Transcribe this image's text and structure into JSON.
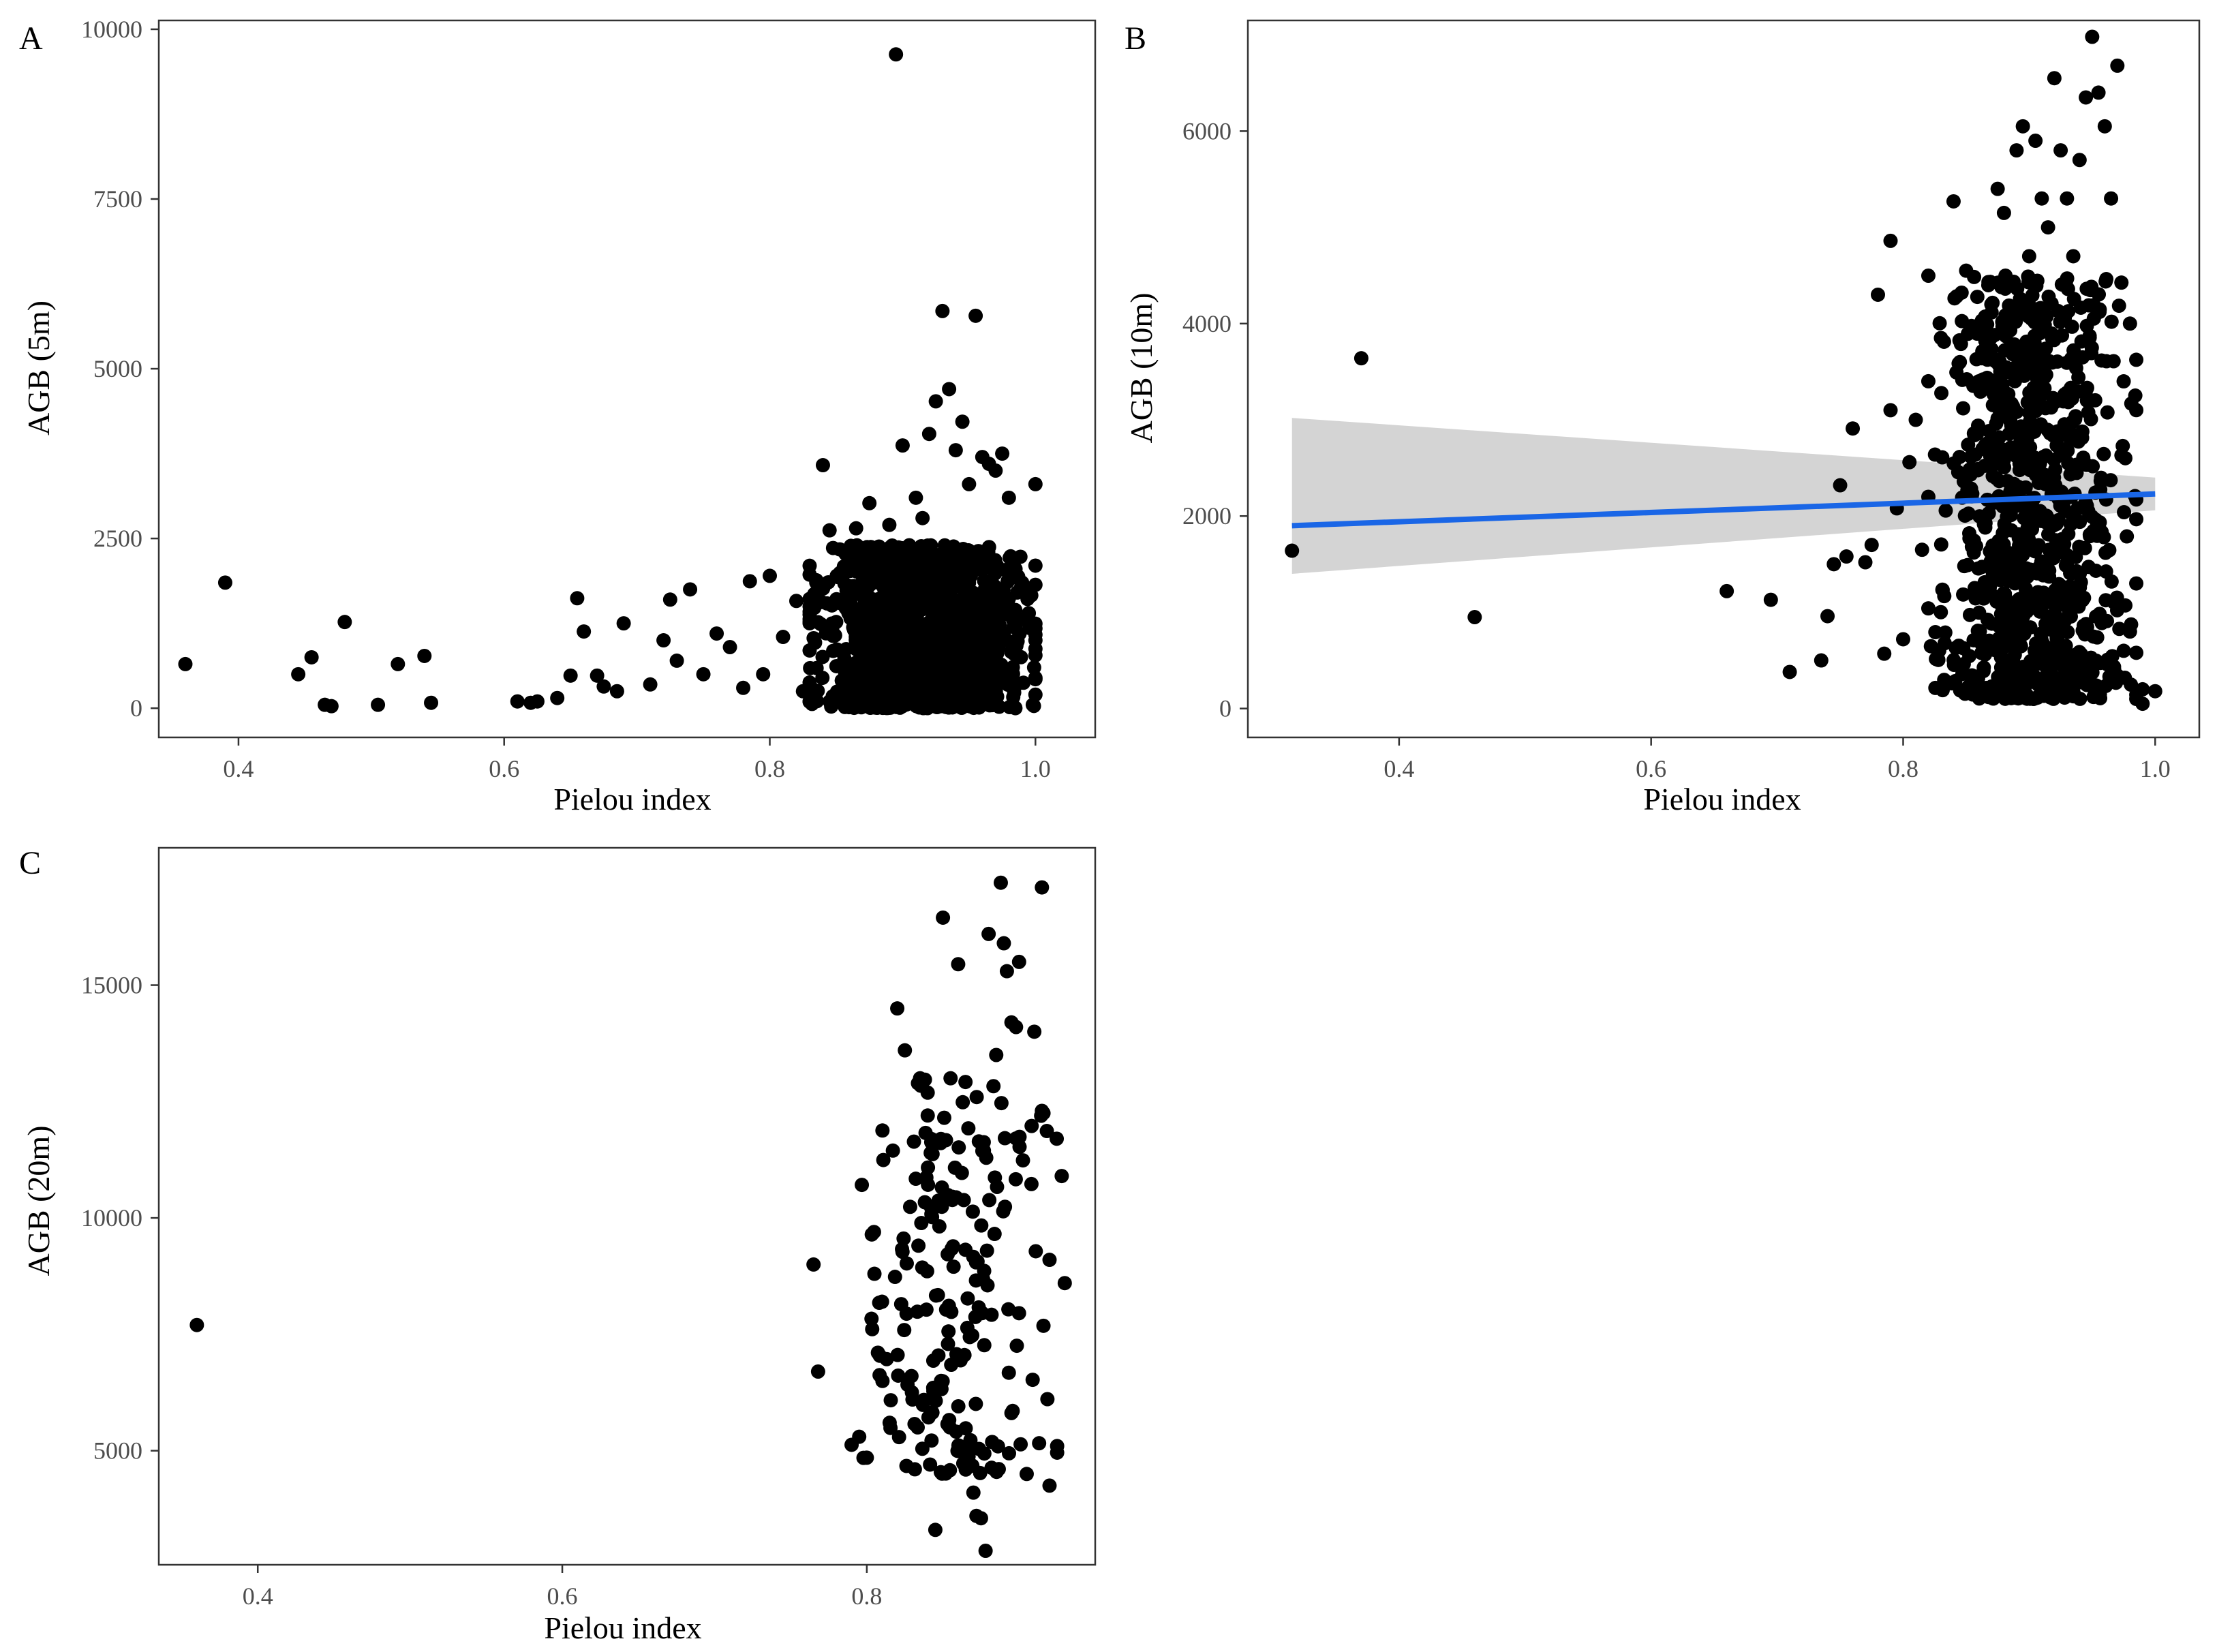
{
  "figure": {
    "panels": [
      "A",
      "B",
      "C"
    ]
  },
  "colors": {
    "points": "#000000",
    "fit_line": "#1a66e6",
    "confidence_band": "#cccccc",
    "axis": "#333333",
    "tick_label": "#4d4d4d",
    "axis_title": "#000000"
  },
  "chart_data": [
    {
      "type": "scatter",
      "panel_label": "A",
      "xlabel": "Pielou index",
      "ylabel": "AGB (5m)",
      "xlim": [
        0.34,
        1.045
      ],
      "ylim": [
        -430,
        10130
      ],
      "xticks": [
        0.4,
        0.6,
        0.8,
        1.0
      ],
      "xtick_labels": [
        "0.4",
        "0.6",
        "0.8",
        "1.0"
      ],
      "yticks": [
        0,
        2500,
        5000,
        7500,
        10000
      ],
      "ytick_labels": [
        "0",
        "2500",
        "5000",
        "7500",
        "10000"
      ],
      "grid": false,
      "legend": "none",
      "points": [
        [
          0.36,
          650
        ],
        [
          0.39,
          1850
        ],
        [
          0.445,
          500
        ],
        [
          0.455,
          750
        ],
        [
          0.465,
          50
        ],
        [
          0.47,
          30
        ],
        [
          0.48,
          1270
        ],
        [
          0.505,
          50
        ],
        [
          0.52,
          650
        ],
        [
          0.54,
          770
        ],
        [
          0.545,
          80
        ],
        [
          0.61,
          100
        ],
        [
          0.62,
          80
        ],
        [
          0.625,
          100
        ],
        [
          0.64,
          150
        ],
        [
          0.65,
          480
        ],
        [
          0.655,
          1620
        ],
        [
          0.66,
          1130
        ],
        [
          0.67,
          480
        ],
        [
          0.675,
          320
        ],
        [
          0.685,
          250
        ],
        [
          0.69,
          1250
        ],
        [
          0.71,
          350
        ],
        [
          0.72,
          1000
        ],
        [
          0.725,
          1600
        ],
        [
          0.73,
          700
        ],
        [
          0.74,
          1750
        ],
        [
          0.75,
          500
        ],
        [
          0.76,
          1100
        ],
        [
          0.77,
          900
        ],
        [
          0.78,
          300
        ],
        [
          0.785,
          1870
        ],
        [
          0.795,
          500
        ],
        [
          0.8,
          1950
        ],
        [
          0.81,
          1050
        ],
        [
          0.82,
          1580
        ],
        [
          0.825,
          250
        ],
        [
          0.83,
          1500
        ],
        [
          0.835,
          1850
        ],
        [
          0.84,
          3580
        ],
        [
          0.845,
          2620
        ],
        [
          0.85,
          1270
        ],
        [
          0.86,
          1800
        ],
        [
          0.865,
          2650
        ],
        [
          0.87,
          2000
        ],
        [
          0.875,
          3020
        ],
        [
          0.88,
          1450
        ],
        [
          0.885,
          1800
        ],
        [
          0.89,
          2700
        ],
        [
          0.895,
          9630
        ],
        [
          0.9,
          3870
        ],
        [
          0.905,
          2400
        ],
        [
          0.91,
          3100
        ],
        [
          0.915,
          2800
        ],
        [
          0.92,
          4040
        ],
        [
          0.925,
          4520
        ],
        [
          0.93,
          5850
        ],
        [
          0.935,
          4700
        ],
        [
          0.94,
          3800
        ],
        [
          0.945,
          4220
        ],
        [
          0.95,
          3300
        ],
        [
          0.955,
          5780
        ],
        [
          0.96,
          3700
        ],
        [
          0.965,
          3600
        ],
        [
          0.97,
          3500
        ],
        [
          0.975,
          3750
        ],
        [
          0.98,
          3100
        ],
        [
          0.985,
          2050
        ],
        [
          0.99,
          1850
        ],
        [
          1.0,
          3300
        ],
        [
          1.0,
          2100
        ],
        [
          0.995,
          1400
        ],
        [
          1.0,
          1000
        ],
        [
          0.999,
          600
        ],
        [
          1.0,
          200
        ],
        [
          0.998,
          50
        ]
      ],
      "dense_cluster": {
        "x_range": [
          0.83,
          1.0
        ],
        "y_range": [
          0,
          2400
        ],
        "count": 1300,
        "seed": 11
      }
    },
    {
      "type": "scatter",
      "panel_label": "B",
      "xlabel": "Pielou index",
      "ylabel": "AGB (10m)",
      "xlim": [
        0.28,
        1.035
      ],
      "ylim": [
        -300,
        7150
      ],
      "xticks": [
        0.4,
        0.6,
        0.8,
        1.0
      ],
      "xtick_labels": [
        "0.4",
        "0.6",
        "0.8",
        "1.0"
      ],
      "yticks": [
        0,
        2000,
        4000,
        6000
      ],
      "ytick_labels": [
        "0",
        "2000",
        "4000",
        "6000"
      ],
      "grid": false,
      "legend": "none",
      "fit": {
        "x": [
          0.315,
          1.0
        ],
        "y": [
          1900,
          2230
        ],
        "ci_lower": [
          1400,
          2060
        ],
        "ci_upper": [
          3020,
          2400
        ]
      },
      "points": [
        [
          0.315,
          1640
        ],
        [
          0.37,
          3640
        ],
        [
          0.46,
          950
        ],
        [
          0.66,
          1220
        ],
        [
          0.695,
          1130
        ],
        [
          0.71,
          380
        ],
        [
          0.735,
          500
        ],
        [
          0.74,
          960
        ],
        [
          0.745,
          1500
        ],
        [
          0.75,
          2320
        ],
        [
          0.755,
          1580
        ],
        [
          0.76,
          2910
        ],
        [
          0.77,
          1520
        ],
        [
          0.775,
          1700
        ],
        [
          0.78,
          4300
        ],
        [
          0.785,
          570
        ],
        [
          0.79,
          4860
        ],
        [
          0.79,
          3100
        ],
        [
          0.795,
          2080
        ],
        [
          0.8,
          720
        ],
        [
          0.805,
          2560
        ],
        [
          0.81,
          3000
        ],
        [
          0.815,
          1650
        ],
        [
          0.82,
          2200
        ],
        [
          0.83,
          3850
        ],
        [
          0.84,
          5270
        ],
        [
          0.845,
          3600
        ],
        [
          0.85,
          4550
        ],
        [
          0.86,
          3400
        ],
        [
          0.87,
          4200
        ],
        [
          0.875,
          5400
        ],
        [
          0.88,
          5150
        ],
        [
          0.885,
          4400
        ],
        [
          0.89,
          5800
        ],
        [
          0.895,
          6050
        ],
        [
          0.9,
          4700
        ],
        [
          0.905,
          5900
        ],
        [
          0.91,
          5300
        ],
        [
          0.915,
          5000
        ],
        [
          0.92,
          6550
        ],
        [
          0.925,
          5800
        ],
        [
          0.93,
          5300
        ],
        [
          0.935,
          4700
        ],
        [
          0.94,
          5700
        ],
        [
          0.945,
          6350
        ],
        [
          0.95,
          6980
        ],
        [
          0.955,
          6400
        ],
        [
          0.96,
          6050
        ],
        [
          0.965,
          5300
        ],
        [
          0.97,
          6680
        ],
        [
          0.975,
          3400
        ],
        [
          0.98,
          4000
        ],
        [
          0.985,
          1300
        ],
        [
          0.99,
          200
        ],
        [
          0.99,
          50
        ],
        [
          1.0,
          180
        ],
        [
          0.985,
          100
        ],
        [
          0.98,
          800
        ],
        [
          0.975,
          600
        ]
      ],
      "dense_cluster": {
        "x_range": [
          0.82,
          0.985
        ],
        "y_range": [
          100,
          4500
        ],
        "count": 900,
        "seed": 23
      }
    },
    {
      "type": "scatter",
      "panel_label": "C",
      "xlabel": "Pielou index",
      "ylabel": "AGB (20m)",
      "xlim": [
        0.335,
        0.95
      ],
      "ylim": [
        2550,
        17950
      ],
      "xticks": [
        0.4,
        0.6,
        0.8
      ],
      "xtick_labels": [
        "0.4",
        "0.6",
        "0.8"
      ],
      "yticks": [
        5000,
        10000,
        15000
      ],
      "ytick_labels": [
        "5000",
        "10000",
        "15000"
      ],
      "grid": false,
      "legend": "none",
      "points": [
        [
          0.36,
          7700
        ],
        [
          0.765,
          9000
        ],
        [
          0.768,
          6700
        ],
        [
          0.795,
          5300
        ],
        [
          0.8,
          4850
        ],
        [
          0.805,
          8800
        ],
        [
          0.81,
          8200
        ],
        [
          0.815,
          5600
        ],
        [
          0.82,
          14500
        ],
        [
          0.825,
          13600
        ],
        [
          0.83,
          6100
        ],
        [
          0.835,
          13000
        ],
        [
          0.84,
          12200
        ],
        [
          0.845,
          3300
        ],
        [
          0.85,
          16450
        ],
        [
          0.855,
          13000
        ],
        [
          0.86,
          15450
        ],
        [
          0.865,
          4800
        ],
        [
          0.87,
          4100
        ],
        [
          0.872,
          3600
        ],
        [
          0.875,
          3550
        ],
        [
          0.878,
          2850
        ],
        [
          0.88,
          16100
        ],
        [
          0.885,
          13500
        ],
        [
          0.888,
          17200
        ],
        [
          0.89,
          15900
        ],
        [
          0.892,
          15300
        ],
        [
          0.895,
          14200
        ],
        [
          0.898,
          14100
        ],
        [
          0.9,
          15500
        ],
        [
          0.905,
          4500
        ],
        [
          0.91,
          14000
        ],
        [
          0.915,
          17100
        ],
        [
          0.92,
          4250
        ],
        [
          0.925,
          5100
        ],
        [
          0.928,
          10900
        ],
        [
          0.93,
          8600
        ],
        [
          0.92,
          9100
        ],
        [
          0.915,
          12300
        ]
      ],
      "dense_cluster": {
        "x_range": [
          0.79,
          0.925
        ],
        "y_range": [
          4500,
          13000
        ],
        "count": 200,
        "seed": 37
      }
    }
  ]
}
